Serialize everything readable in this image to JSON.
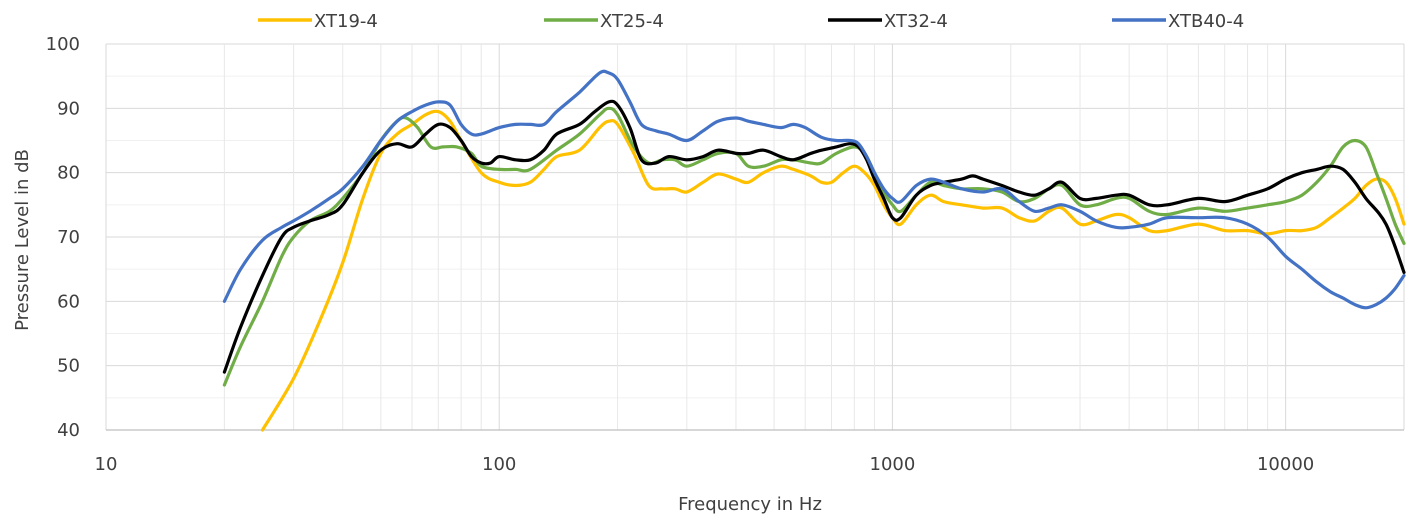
{
  "chart_data": {
    "type": "line",
    "xlabel": "Frequency in Hz",
    "ylabel": "Pressure Level in dB",
    "x_scale": "log",
    "xlim": [
      10,
      20000
    ],
    "ylim": [
      40,
      100
    ],
    "x_ticks": [
      10,
      100,
      1000,
      10000
    ],
    "y_ticks": [
      40,
      50,
      60,
      70,
      80,
      90,
      100
    ],
    "grid": true,
    "legend_position": "top",
    "series": [
      {
        "name": "XT19-4",
        "color": "#FFC000",
        "points": [
          [
            25,
            40
          ],
          [
            30,
            48
          ],
          [
            35,
            57
          ],
          [
            40,
            66
          ],
          [
            45,
            76
          ],
          [
            50,
            83
          ],
          [
            55,
            86
          ],
          [
            60,
            87.5
          ],
          [
            65,
            89
          ],
          [
            70,
            89.5
          ],
          [
            75,
            88
          ],
          [
            80,
            85
          ],
          [
            90,
            80
          ],
          [
            100,
            78.5
          ],
          [
            110,
            78
          ],
          [
            120,
            78.5
          ],
          [
            130,
            80.5
          ],
          [
            140,
            82.5
          ],
          [
            160,
            83.5
          ],
          [
            180,
            87
          ],
          [
            190,
            88
          ],
          [
            200,
            87.5
          ],
          [
            220,
            83
          ],
          [
            240,
            78
          ],
          [
            260,
            77.5
          ],
          [
            280,
            77.5
          ],
          [
            300,
            77
          ],
          [
            330,
            78.5
          ],
          [
            360,
            79.8
          ],
          [
            400,
            79
          ],
          [
            430,
            78.5
          ],
          [
            470,
            80
          ],
          [
            520,
            81
          ],
          [
            560,
            80.5
          ],
          [
            620,
            79.5
          ],
          [
            660,
            78.5
          ],
          [
            700,
            78.5
          ],
          [
            750,
            80
          ],
          [
            800,
            81
          ],
          [
            850,
            80
          ],
          [
            900,
            78
          ],
          [
            950,
            75
          ],
          [
            1000,
            73
          ],
          [
            1050,
            72
          ],
          [
            1150,
            75
          ],
          [
            1250,
            76.5
          ],
          [
            1350,
            75.5
          ],
          [
            1500,
            75
          ],
          [
            1700,
            74.5
          ],
          [
            1900,
            74.5
          ],
          [
            2100,
            73
          ],
          [
            2300,
            72.5
          ],
          [
            2500,
            74
          ],
          [
            2700,
            74.5
          ],
          [
            3000,
            72
          ],
          [
            3300,
            72.5
          ],
          [
            3700,
            73.5
          ],
          [
            4000,
            73
          ],
          [
            4500,
            71
          ],
          [
            5000,
            71
          ],
          [
            6000,
            72
          ],
          [
            7000,
            71
          ],
          [
            8000,
            71
          ],
          [
            9000,
            70.5
          ],
          [
            10000,
            71
          ],
          [
            11000,
            71
          ],
          [
            12000,
            71.5
          ],
          [
            13000,
            73
          ],
          [
            14000,
            74.5
          ],
          [
            15000,
            76
          ],
          [
            16000,
            78
          ],
          [
            17000,
            79
          ],
          [
            18000,
            78.5
          ],
          [
            19000,
            76
          ],
          [
            20000,
            72
          ]
        ]
      },
      {
        "name": "XT25-4",
        "color": "#70AD47",
        "points": [
          [
            20,
            47
          ],
          [
            22,
            53
          ],
          [
            25,
            60
          ],
          [
            28,
            67
          ],
          [
            30,
            70
          ],
          [
            33,
            72.5
          ],
          [
            37,
            74
          ],
          [
            40,
            76
          ],
          [
            45,
            80
          ],
          [
            50,
            85
          ],
          [
            55,
            88
          ],
          [
            58,
            88.5
          ],
          [
            62,
            87
          ],
          [
            67,
            84
          ],
          [
            72,
            84
          ],
          [
            78,
            84
          ],
          [
            85,
            83
          ],
          [
            90,
            81
          ],
          [
            100,
            80.5
          ],
          [
            110,
            80.5
          ],
          [
            120,
            80.5
          ],
          [
            140,
            83.5
          ],
          [
            160,
            86
          ],
          [
            180,
            89
          ],
          [
            190,
            90
          ],
          [
            200,
            89
          ],
          [
            220,
            84
          ],
          [
            240,
            81.5
          ],
          [
            260,
            82
          ],
          [
            280,
            82
          ],
          [
            300,
            81
          ],
          [
            330,
            82
          ],
          [
            360,
            83
          ],
          [
            400,
            83
          ],
          [
            430,
            81
          ],
          [
            470,
            81
          ],
          [
            520,
            82
          ],
          [
            560,
            82
          ],
          [
            620,
            81.5
          ],
          [
            660,
            81.5
          ],
          [
            720,
            83
          ],
          [
            800,
            84
          ],
          [
            850,
            83
          ],
          [
            900,
            80
          ],
          [
            950,
            77
          ],
          [
            1000,
            75
          ],
          [
            1050,
            74
          ],
          [
            1150,
            76.5
          ],
          [
            1250,
            78.5
          ],
          [
            1350,
            78
          ],
          [
            1500,
            77.5
          ],
          [
            1700,
            77.5
          ],
          [
            1900,
            77
          ],
          [
            2100,
            75.5
          ],
          [
            2300,
            76
          ],
          [
            2500,
            77.5
          ],
          [
            2700,
            78
          ],
          [
            3000,
            75
          ],
          [
            3300,
            75
          ],
          [
            3700,
            76
          ],
          [
            4000,
            76
          ],
          [
            4500,
            74
          ],
          [
            5000,
            73.5
          ],
          [
            6000,
            74.5
          ],
          [
            7000,
            74
          ],
          [
            8000,
            74.5
          ],
          [
            9000,
            75
          ],
          [
            10000,
            75.5
          ],
          [
            11000,
            76.5
          ],
          [
            12000,
            78.5
          ],
          [
            13000,
            81
          ],
          [
            14000,
            84
          ],
          [
            15000,
            85
          ],
          [
            16000,
            84
          ],
          [
            17000,
            80
          ],
          [
            18000,
            76
          ],
          [
            19000,
            72
          ],
          [
            20000,
            69
          ]
        ]
      },
      {
        "name": "XT32-4",
        "color": "#000000",
        "points": [
          [
            20,
            49
          ],
          [
            22,
            56
          ],
          [
            25,
            64
          ],
          [
            28,
            70
          ],
          [
            30,
            71.5
          ],
          [
            33,
            72.5
          ],
          [
            37,
            73.5
          ],
          [
            40,
            75
          ],
          [
            45,
            80
          ],
          [
            50,
            83.5
          ],
          [
            55,
            84.5
          ],
          [
            60,
            84
          ],
          [
            65,
            86
          ],
          [
            70,
            87.5
          ],
          [
            75,
            87
          ],
          [
            80,
            85
          ],
          [
            85,
            82.5
          ],
          [
            90,
            81.5
          ],
          [
            95,
            81.5
          ],
          [
            100,
            82.5
          ],
          [
            110,
            82
          ],
          [
            120,
            82
          ],
          [
            130,
            83.5
          ],
          [
            140,
            86
          ],
          [
            160,
            87.5
          ],
          [
            175,
            89.5
          ],
          [
            190,
            91
          ],
          [
            200,
            90.5
          ],
          [
            215,
            87
          ],
          [
            230,
            82
          ],
          [
            250,
            81.5
          ],
          [
            270,
            82.5
          ],
          [
            300,
            82
          ],
          [
            330,
            82.5
          ],
          [
            360,
            83.5
          ],
          [
            400,
            83
          ],
          [
            430,
            83
          ],
          [
            470,
            83.5
          ],
          [
            520,
            82.5
          ],
          [
            560,
            82
          ],
          [
            620,
            83
          ],
          [
            660,
            83.5
          ],
          [
            720,
            84
          ],
          [
            780,
            84.5
          ],
          [
            820,
            84
          ],
          [
            860,
            82
          ],
          [
            900,
            79
          ],
          [
            950,
            76
          ],
          [
            1000,
            73
          ],
          [
            1050,
            73
          ],
          [
            1150,
            76.5
          ],
          [
            1250,
            78
          ],
          [
            1350,
            78.5
          ],
          [
            1500,
            79
          ],
          [
            1600,
            79.5
          ],
          [
            1700,
            79
          ],
          [
            1900,
            78
          ],
          [
            2100,
            77
          ],
          [
            2300,
            76.5
          ],
          [
            2500,
            77.5
          ],
          [
            2700,
            78.5
          ],
          [
            3000,
            76
          ],
          [
            3300,
            76
          ],
          [
            3700,
            76.5
          ],
          [
            4000,
            76.5
          ],
          [
            4500,
            75
          ],
          [
            5000,
            75
          ],
          [
            6000,
            76
          ],
          [
            7000,
            75.5
          ],
          [
            8000,
            76.5
          ],
          [
            9000,
            77.5
          ],
          [
            10000,
            79
          ],
          [
            11000,
            80
          ],
          [
            12000,
            80.5
          ],
          [
            13000,
            81
          ],
          [
            14000,
            80.5
          ],
          [
            15000,
            78.5
          ],
          [
            16000,
            76
          ],
          [
            18000,
            72
          ],
          [
            20000,
            64.5
          ]
        ]
      },
      {
        "name": "XTB40-4",
        "color": "#4472C4",
        "points": [
          [
            20,
            60
          ],
          [
            22,
            65
          ],
          [
            25,
            69.5
          ],
          [
            28,
            71.5
          ],
          [
            30,
            72.5
          ],
          [
            33,
            74
          ],
          [
            37,
            76
          ],
          [
            40,
            77.5
          ],
          [
            45,
            81
          ],
          [
            50,
            85
          ],
          [
            55,
            88
          ],
          [
            60,
            89.5
          ],
          [
            65,
            90.5
          ],
          [
            70,
            91
          ],
          [
            75,
            90.5
          ],
          [
            80,
            87.5
          ],
          [
            85,
            86
          ],
          [
            90,
            86
          ],
          [
            100,
            87
          ],
          [
            110,
            87.5
          ],
          [
            120,
            87.5
          ],
          [
            130,
            87.5
          ],
          [
            140,
            89.5
          ],
          [
            160,
            92.5
          ],
          [
            180,
            95.5
          ],
          [
            190,
            95.5
          ],
          [
            200,
            94.5
          ],
          [
            215,
            91
          ],
          [
            230,
            87.5
          ],
          [
            250,
            86.5
          ],
          [
            270,
            86
          ],
          [
            300,
            85
          ],
          [
            330,
            86.5
          ],
          [
            360,
            88
          ],
          [
            400,
            88.5
          ],
          [
            430,
            88
          ],
          [
            470,
            87.5
          ],
          [
            520,
            87
          ],
          [
            560,
            87.5
          ],
          [
            600,
            87
          ],
          [
            660,
            85.5
          ],
          [
            720,
            85
          ],
          [
            780,
            85
          ],
          [
            820,
            84.5
          ],
          [
            860,
            82.5
          ],
          [
            900,
            80
          ],
          [
            950,
            77.5
          ],
          [
            1000,
            76
          ],
          [
            1050,
            75.5
          ],
          [
            1150,
            78
          ],
          [
            1250,
            79
          ],
          [
            1350,
            78.5
          ],
          [
            1500,
            77.5
          ],
          [
            1700,
            77
          ],
          [
            1900,
            77.5
          ],
          [
            2100,
            75.5
          ],
          [
            2300,
            74
          ],
          [
            2500,
            74.5
          ],
          [
            2700,
            75
          ],
          [
            3000,
            74
          ],
          [
            3300,
            72.5
          ],
          [
            3700,
            71.5
          ],
          [
            4000,
            71.5
          ],
          [
            4500,
            72
          ],
          [
            5000,
            73
          ],
          [
            6000,
            73
          ],
          [
            7000,
            73
          ],
          [
            8000,
            72
          ],
          [
            9000,
            70
          ],
          [
            10000,
            67
          ],
          [
            11000,
            65
          ],
          [
            12000,
            63
          ],
          [
            13000,
            61.5
          ],
          [
            14000,
            60.5
          ],
          [
            15000,
            59.5
          ],
          [
            16000,
            59
          ],
          [
            17000,
            59.5
          ],
          [
            18000,
            60.5
          ],
          [
            19000,
            62
          ],
          [
            20000,
            64
          ]
        ]
      }
    ]
  }
}
